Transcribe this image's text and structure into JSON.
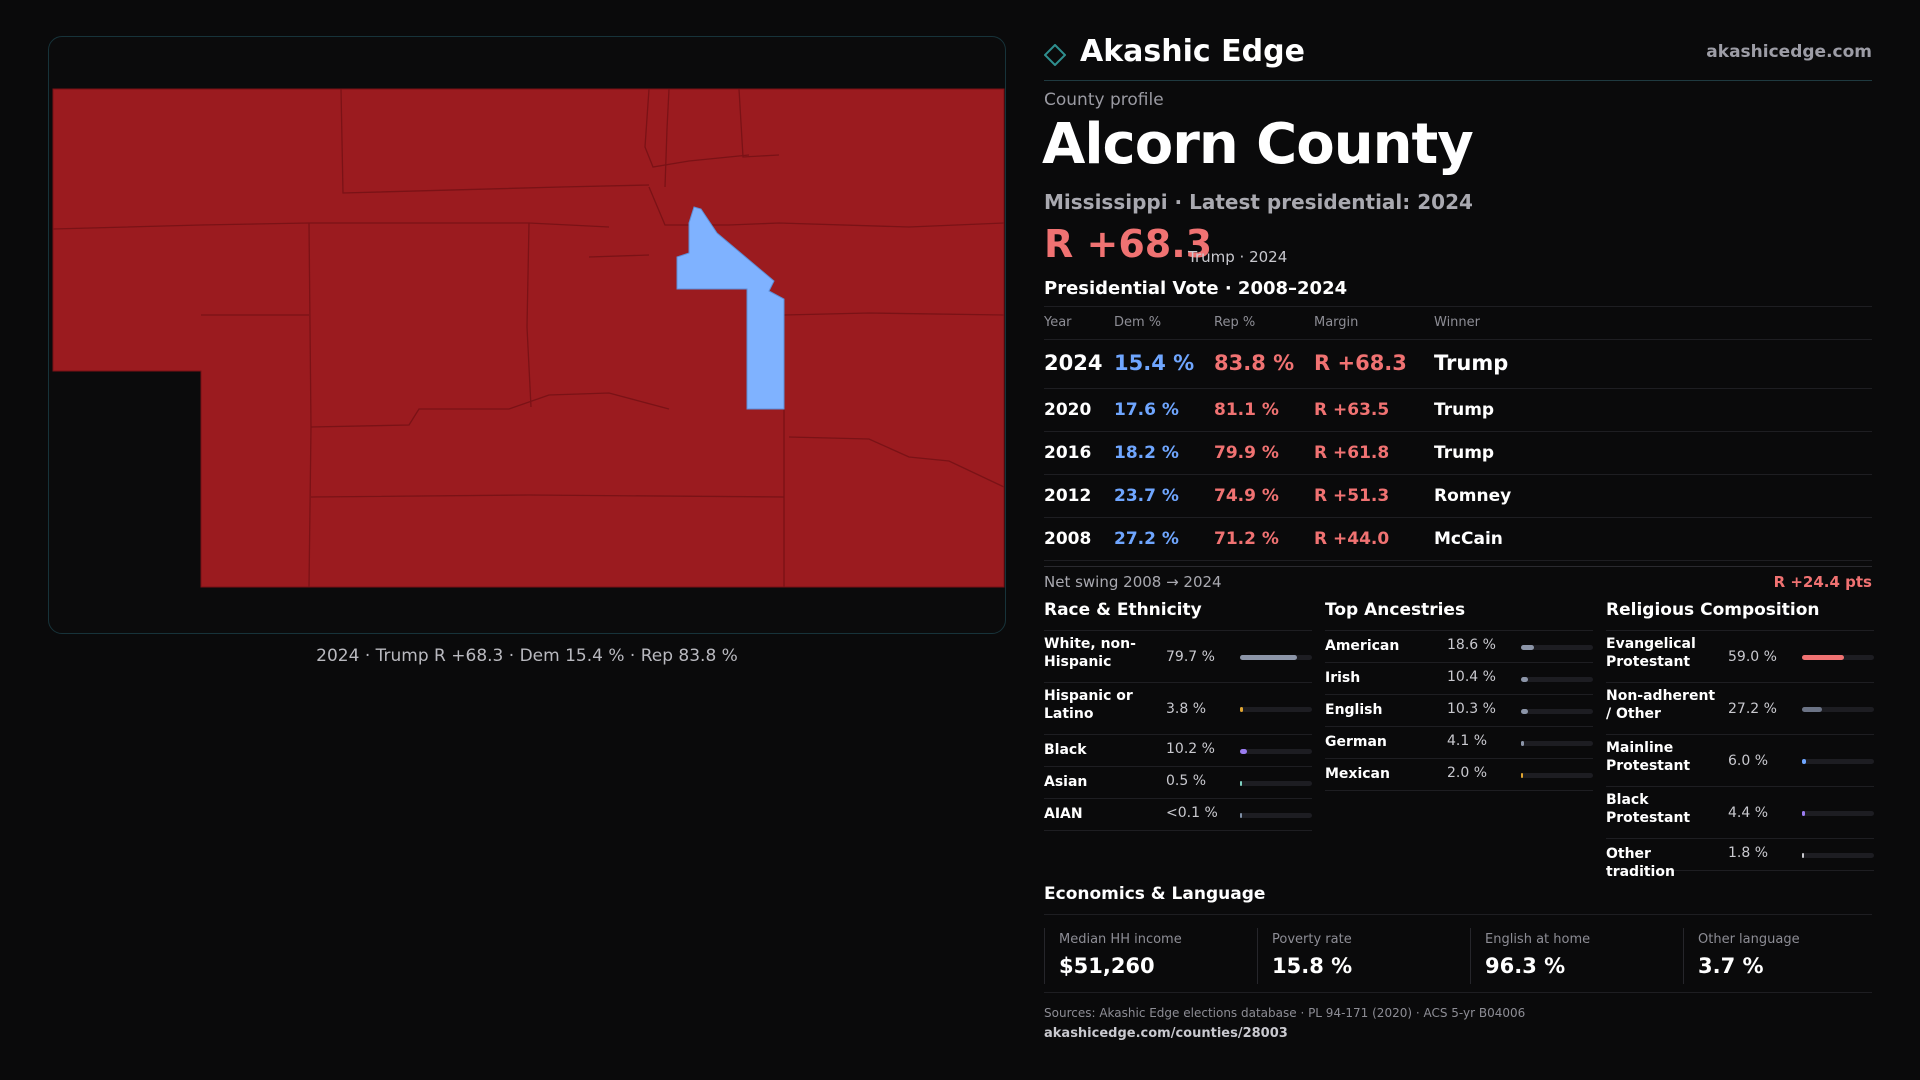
{
  "brand": {
    "name": "Akashic Edge",
    "url": "akashicedge.com"
  },
  "map": {
    "caption": "2024 · Trump R +68.3 · Dem 15.4 % · Rep 83.8 %",
    "colors": {
      "rep": "#9b1b1f",
      "dem": "#7fb2ff",
      "border": "#7a1216"
    }
  },
  "profile": {
    "label": "County profile",
    "county": "Alcorn County",
    "subtitle": "Mississippi · Latest presidential: 2024",
    "margin": "R +68.3",
    "margin_note": "Trump · 2024"
  },
  "vote": {
    "title": "Presidential Vote · 2008–2024",
    "headers": {
      "year": "Year",
      "dem": "Dem %",
      "rep": "Rep %",
      "margin": "Margin",
      "winner": "Winner"
    },
    "rows": [
      {
        "year": "2024",
        "dem": "15.4 %",
        "rep": "83.8 %",
        "margin": "R +68.3",
        "winner": "Trump"
      },
      {
        "year": "2020",
        "dem": "17.6 %",
        "rep": "81.1 %",
        "margin": "R +63.5",
        "winner": "Trump"
      },
      {
        "year": "2016",
        "dem": "18.2 %",
        "rep": "79.9 %",
        "margin": "R +61.8",
        "winner": "Trump"
      },
      {
        "year": "2012",
        "dem": "23.7 %",
        "rep": "74.9 %",
        "margin": "R +51.3",
        "winner": "Romney"
      },
      {
        "year": "2008",
        "dem": "27.2 %",
        "rep": "71.2 %",
        "margin": "R +44.0",
        "winner": "McCain"
      }
    ],
    "swing_label": "Net swing 2008 → 2024",
    "swing_value": "R +24.4 pts"
  },
  "race": {
    "title": "Race & Ethnicity",
    "items": [
      {
        "label": "White, non-Hispanic",
        "value": "79.7 %",
        "pct": 79.7,
        "color": "#8c95a8"
      },
      {
        "label": "Hispanic or Latino",
        "value": "3.8 %",
        "pct": 3.8,
        "color": "#e0a531"
      },
      {
        "label": "Black",
        "value": "10.2 %",
        "pct": 10.2,
        "color": "#9a7cf0"
      },
      {
        "label": "Asian",
        "value": "0.5 %",
        "pct": 0.5,
        "color": "#7fd0c0"
      },
      {
        "label": "AIAN",
        "value": "<0.1 %",
        "pct": 0.05,
        "color": "#7f8fa6"
      }
    ]
  },
  "ancestry": {
    "title": "Top Ancestries",
    "items": [
      {
        "label": "American",
        "value": "18.6 %",
        "pct": 18.6,
        "color": "#8c95a8"
      },
      {
        "label": "Irish",
        "value": "10.4 %",
        "pct": 10.4,
        "color": "#8c95a8"
      },
      {
        "label": "English",
        "value": "10.3 %",
        "pct": 10.3,
        "color": "#8c95a8"
      },
      {
        "label": "German",
        "value": "4.1 %",
        "pct": 4.1,
        "color": "#8c95a8"
      },
      {
        "label": "Mexican",
        "value": "2.0 %",
        "pct": 2.0,
        "color": "#e0a531"
      }
    ]
  },
  "religion": {
    "title": "Religious Composition",
    "items": [
      {
        "label": "Evangelical Protestant",
        "value": "59.0 %",
        "pct": 59.0,
        "color": "#f07272"
      },
      {
        "label": "Non-adherent / Other",
        "value": "27.2 %",
        "pct": 27.2,
        "color": "#6b7385"
      },
      {
        "label": "Mainline Protestant",
        "value": "6.0 %",
        "pct": 6.0,
        "color": "#6fa6ff"
      },
      {
        "label": "Black Protestant",
        "value": "4.4 %",
        "pct": 4.4,
        "color": "#9a7cf0"
      },
      {
        "label": "Other tradition",
        "value": "1.8 %",
        "pct": 1.8,
        "color": "#c9c9cf"
      }
    ]
  },
  "economics": {
    "title": "Economics & Language",
    "cells": [
      {
        "label": "Median HH income",
        "value": "$51,260"
      },
      {
        "label": "Poverty rate",
        "value": "15.8 %"
      },
      {
        "label": "English at home",
        "value": "96.3 %"
      },
      {
        "label": "Other language",
        "value": "3.7 %"
      }
    ]
  },
  "sources": "Sources: Akashic Edge elections database · PL 94-171 (2020) · ACS 5-yr B04006",
  "county_url": "akashicedge.com/counties/28003",
  "colors": {
    "accent": "#17333a",
    "rep_text": "#f07272",
    "dem_text": "#6fa6ff"
  }
}
